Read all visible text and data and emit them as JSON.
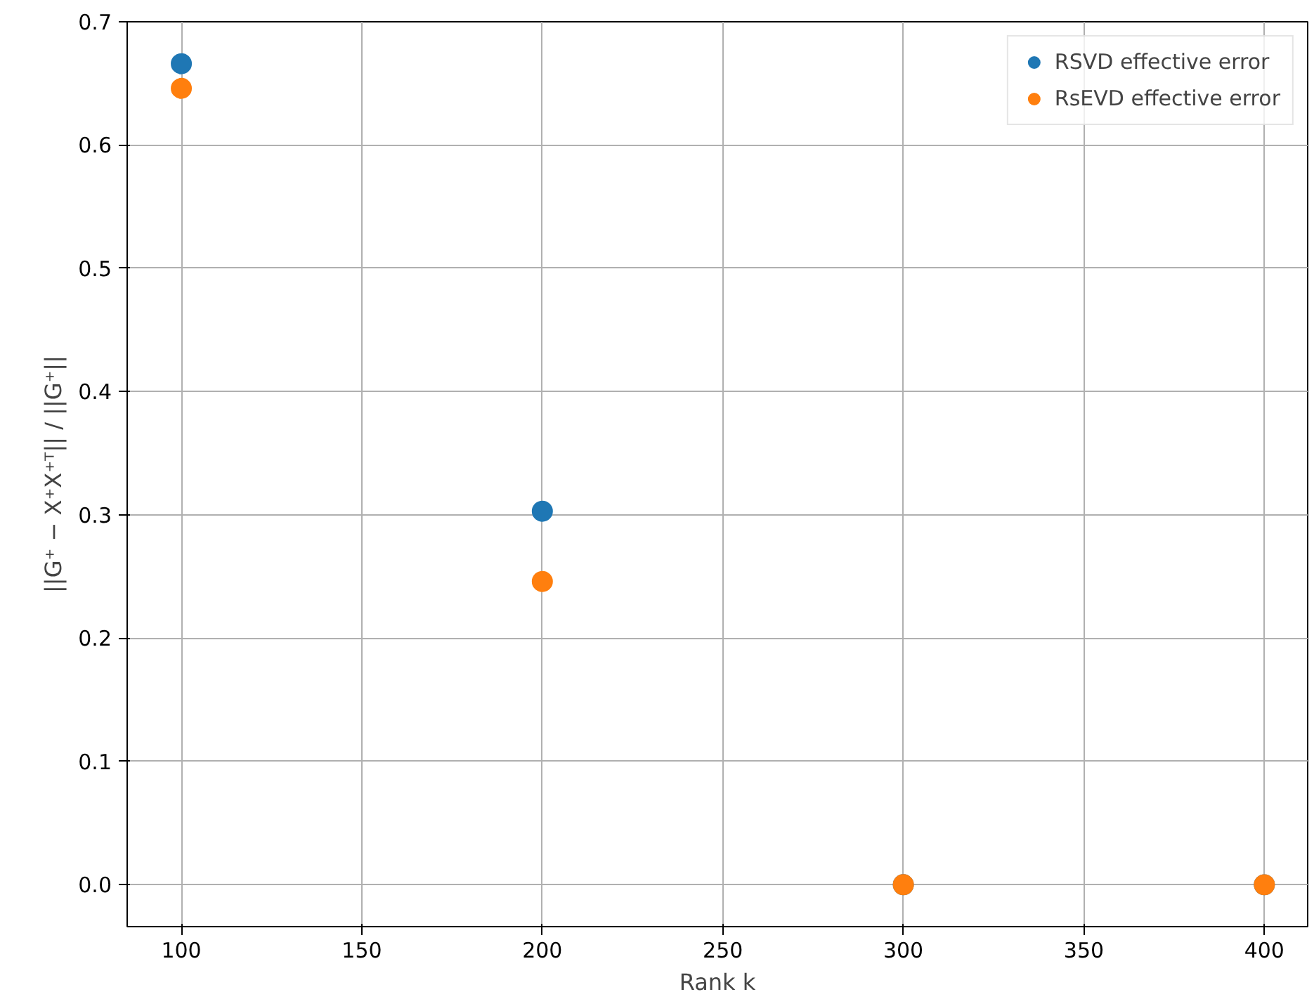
{
  "chart_data": {
    "type": "scatter",
    "xlabel": "Rank k",
    "ylabel": "||G⁺ − X⁺X⁺ᵀ|| / ||G⁺||",
    "x": [
      100,
      200,
      300,
      400
    ],
    "series": [
      {
        "name": "RSVD effective error",
        "color": "#1f77b4",
        "values": [
          0.666,
          0.303,
          0.0,
          0.0
        ]
      },
      {
        "name": "RsEVD effective error",
        "color": "#ff7f0e",
        "values": [
          0.646,
          0.246,
          0.0,
          0.0
        ]
      }
    ],
    "xlim": [
      85,
      412
    ],
    "ylim": [
      -0.034,
      0.7
    ],
    "xticks": [
      100,
      150,
      200,
      250,
      300,
      350,
      400
    ],
    "yticks": [
      {
        "value": 0,
        "label": "0.0"
      },
      {
        "value": 0.1,
        "label": "0.1"
      },
      {
        "value": 0.2,
        "label": "0.2"
      },
      {
        "value": 0.3,
        "label": "0.3"
      },
      {
        "value": 0.4,
        "label": "0.4"
      },
      {
        "value": 0.5,
        "label": "0.5"
      },
      {
        "value": 0.6,
        "label": "0.6"
      },
      {
        "value": 0.7,
        "label": "0.7"
      }
    ],
    "grid": true,
    "legend": "top right",
    "marker": "circle"
  }
}
